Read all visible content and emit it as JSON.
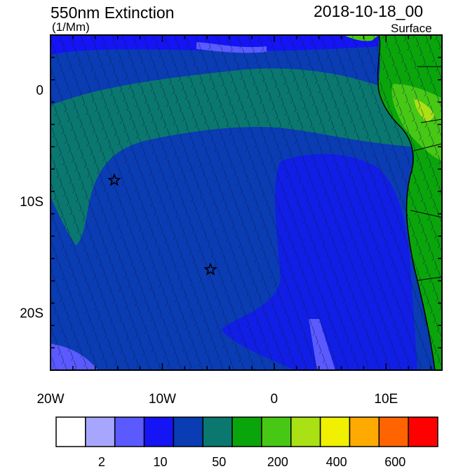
{
  "header": {
    "title": "550nm Extinction",
    "units": "(1/Mm)",
    "datetime": "2018-10-18_00",
    "level": "Surface"
  },
  "map": {
    "lon_range": [
      -20,
      15
    ],
    "lat_range": [
      -25,
      5
    ],
    "x_ticks": [
      {
        "lon": -20,
        "label": "20W"
      },
      {
        "lon": -10,
        "label": "10W"
      },
      {
        "lon": 0,
        "label": "0"
      },
      {
        "lon": 10,
        "label": "10E"
      }
    ],
    "y_ticks": [
      {
        "lat": 0,
        "label": "0"
      },
      {
        "lat": -10,
        "label": "10S"
      },
      {
        "lat": -20,
        "label": "20S"
      }
    ],
    "markers": [
      {
        "name": "star-marker",
        "lon": -14.3,
        "lat": -8.0
      },
      {
        "name": "star-marker",
        "lon": -5.7,
        "lat": -16.0
      }
    ]
  },
  "colorbar": {
    "colors": [
      "#ffffff",
      "#a6a6ff",
      "#5a5aff",
      "#1414f5",
      "#0a3cb4",
      "#0a786e",
      "#0aa50a",
      "#46c814",
      "#aae114",
      "#f0f000",
      "#ffaa00",
      "#ff6400",
      "#ff0000"
    ],
    "labels": [
      {
        "text": "2",
        "boundary": 1
      },
      {
        "text": "10",
        "boundary": 3
      },
      {
        "text": "50",
        "boundary": 5
      },
      {
        "text": "200",
        "boundary": 7
      },
      {
        "text": "400",
        "boundary": 9
      },
      {
        "text": "600",
        "boundary": 11
      }
    ]
  }
}
